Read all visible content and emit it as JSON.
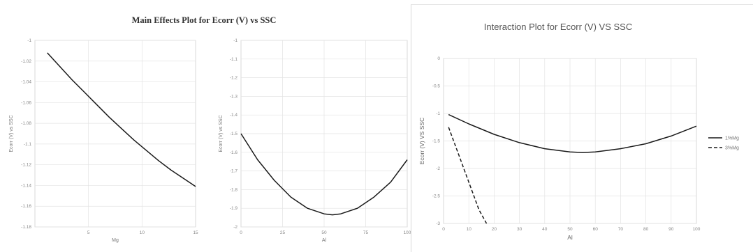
{
  "chart_data": [
    {
      "type": "line",
      "title": "Main Effects Plot for Ecorr (V) vs SSC",
      "xlabel": "Mg",
      "ylabel": "Ecorr (V) vs SSC",
      "xlim": [
        0,
        13
      ],
      "ylim": [
        -1.18,
        -1
      ],
      "yticks": [
        "-1",
        "-1.02",
        "-1.04",
        "-1.06",
        "-1.08",
        "-1.1",
        "-1.12",
        "-1.14",
        "-1.16",
        "-1.18"
      ],
      "xticks": [
        "",
        "5",
        "10",
        "15"
      ],
      "series": [
        {
          "x": [
            1,
            2,
            3,
            4,
            5,
            6,
            7,
            8,
            9,
            10,
            11,
            12,
            13
          ],
          "values": [
            -1.012,
            -1.025,
            -1.038,
            -1.05,
            -1.062,
            -1.074,
            -1.085,
            -1.096,
            -1.106,
            -1.116,
            -1.125,
            -1.133,
            -1.141
          ]
        }
      ],
      "grid": true
    },
    {
      "type": "line",
      "xlabel": "Al",
      "ylabel": "Ecorr (V) vs SSC",
      "xlim": [
        0,
        100
      ],
      "ylim": [
        -2,
        -1
      ],
      "yticks": [
        "-1",
        "-1.1",
        "-1.2",
        "-1.3",
        "-1.4",
        "-1.5",
        "-1.6",
        "-1.7",
        "-1.8",
        "-1.9",
        "-2"
      ],
      "xticks": [
        "0",
        "25",
        "50",
        "75",
        "100"
      ],
      "series": [
        {
          "x": [
            0,
            10,
            20,
            30,
            40,
            50,
            55,
            60,
            70,
            80,
            90,
            100
          ],
          "values": [
            -1.5,
            -1.64,
            -1.75,
            -1.84,
            -1.9,
            -1.93,
            -1.935,
            -1.93,
            -1.9,
            -1.84,
            -1.76,
            -1.64
          ]
        }
      ],
      "grid": true
    },
    {
      "type": "line",
      "title": "Interaction Plot for Ecorr (V) VS SSC",
      "xlabel": "Al",
      "ylabel": "Ecorr (V) VS SSC",
      "xlim": [
        0,
        100
      ],
      "ylim": [
        -3,
        0
      ],
      "yticks": [
        "0",
        "-0.5",
        "-1",
        "-1.5",
        "-2",
        "-2.5",
        "-3"
      ],
      "xticks": [
        "0",
        "10",
        "20",
        "30",
        "40",
        "50",
        "60",
        "70",
        "80",
        "90",
        "100"
      ],
      "series": [
        {
          "name": "1%Mg",
          "style": "solid",
          "x": [
            2,
            10,
            20,
            30,
            40,
            50,
            55,
            60,
            70,
            80,
            90,
            100
          ],
          "values": [
            -1.02,
            -1.19,
            -1.38,
            -1.53,
            -1.64,
            -1.7,
            -1.71,
            -1.7,
            -1.64,
            -1.55,
            -1.41,
            -1.23
          ]
        },
        {
          "name": "3%Mg",
          "style": "dashed",
          "x": [
            2,
            6,
            10,
            14,
            17
          ],
          "values": [
            -1.25,
            -1.75,
            -2.25,
            -2.75,
            -3.0
          ]
        }
      ],
      "legend": "right",
      "grid": true
    }
  ]
}
